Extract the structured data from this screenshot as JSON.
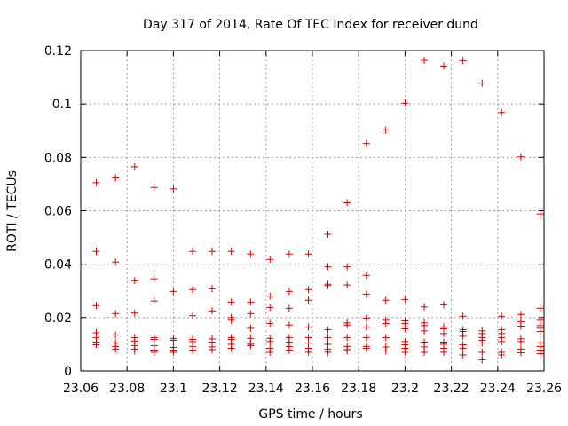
{
  "chart_data": {
    "type": "scatter",
    "title": "Day 317 of 2014, Rate Of TEC Index for receiver dund",
    "xlabel": "GPS time / hours",
    "ylabel": "ROTI / TECUs",
    "xlim": [
      23.06,
      23.26
    ],
    "ylim": [
      0,
      0.12
    ],
    "xticks": [
      23.06,
      23.08,
      23.1,
      23.12,
      23.14,
      23.16,
      23.18,
      23.2,
      23.22,
      23.24,
      23.26
    ],
    "xtick_labels": [
      "23.06",
      "23.08",
      "23.1",
      "23.12",
      "23.14",
      "23.16",
      "23.18",
      "23.2",
      "23.22",
      "23.24",
      "23.26"
    ],
    "yticks": [
      0,
      0.02,
      0.04,
      0.06,
      0.08,
      0.1,
      0.12
    ],
    "ytick_labels": [
      "0",
      "0.02",
      "0.04",
      "0.06",
      "0.08",
      "0.1",
      "0.12"
    ],
    "grid": true,
    "marker": "+",
    "color": "#d40000",
    "series": [
      {
        "name": "ROTI",
        "points": [
          [
            23.0667,
            0.0705
          ],
          [
            23.0667,
            0.0448
          ],
          [
            23.0667,
            0.0245
          ],
          [
            23.0667,
            0.0143
          ],
          [
            23.0667,
            0.0125
          ],
          [
            23.0667,
            0.0108
          ],
          [
            23.0667,
            0.0098
          ],
          [
            23.075,
            0.0723
          ],
          [
            23.075,
            0.0408
          ],
          [
            23.075,
            0.0215
          ],
          [
            23.075,
            0.0135
          ],
          [
            23.075,
            0.0105
          ],
          [
            23.075,
            0.0092
          ],
          [
            23.075,
            0.0082
          ],
          [
            23.0833,
            0.0765
          ],
          [
            23.0833,
            0.0338
          ],
          [
            23.0833,
            0.0217
          ],
          [
            23.0833,
            0.0125
          ],
          [
            23.0833,
            0.0112
          ],
          [
            23.0833,
            0.0095
          ],
          [
            23.0833,
            0.0082
          ],
          [
            23.0833,
            0.0075
          ],
          [
            23.0917,
            0.0687
          ],
          [
            23.0917,
            0.0345
          ],
          [
            23.0917,
            0.0262
          ],
          [
            23.0917,
            0.0125
          ],
          [
            23.0917,
            0.0118
          ],
          [
            23.0917,
            0.0095
          ],
          [
            23.0917,
            0.0078
          ],
          [
            23.0917,
            0.007
          ],
          [
            23.1,
            0.0682
          ],
          [
            23.1,
            0.0298
          ],
          [
            23.1,
            0.0122
          ],
          [
            23.1,
            0.0115
          ],
          [
            23.1,
            0.0088
          ],
          [
            23.1,
            0.0078
          ],
          [
            23.1,
            0.007
          ],
          [
            23.1083,
            0.0448
          ],
          [
            23.1083,
            0.0305
          ],
          [
            23.1083,
            0.0207
          ],
          [
            23.1083,
            0.0118
          ],
          [
            23.1083,
            0.011
          ],
          [
            23.1083,
            0.0092
          ],
          [
            23.1083,
            0.0078
          ],
          [
            23.1167,
            0.0448
          ],
          [
            23.1167,
            0.0308
          ],
          [
            23.1167,
            0.0225
          ],
          [
            23.1167,
            0.012
          ],
          [
            23.1167,
            0.0108
          ],
          [
            23.1167,
            0.009
          ],
          [
            23.1167,
            0.008
          ],
          [
            23.125,
            0.0448
          ],
          [
            23.125,
            0.0258
          ],
          [
            23.125,
            0.02
          ],
          [
            23.125,
            0.019
          ],
          [
            23.125,
            0.0125
          ],
          [
            23.125,
            0.0118
          ],
          [
            23.125,
            0.01
          ],
          [
            23.125,
            0.0085
          ],
          [
            23.1333,
            0.0438
          ],
          [
            23.1333,
            0.0258
          ],
          [
            23.1333,
            0.0215
          ],
          [
            23.1333,
            0.016
          ],
          [
            23.1333,
            0.0122
          ],
          [
            23.1333,
            0.01
          ],
          [
            23.1333,
            0.0095
          ],
          [
            23.1417,
            0.0418
          ],
          [
            23.1417,
            0.028
          ],
          [
            23.1417,
            0.0238
          ],
          [
            23.1417,
            0.0178
          ],
          [
            23.1417,
            0.0122
          ],
          [
            23.1417,
            0.011
          ],
          [
            23.1417,
            0.0085
          ],
          [
            23.1417,
            0.007
          ],
          [
            23.15,
            0.0438
          ],
          [
            23.15,
            0.0298
          ],
          [
            23.15,
            0.0235
          ],
          [
            23.15,
            0.0172
          ],
          [
            23.15,
            0.0125
          ],
          [
            23.15,
            0.0108
          ],
          [
            23.15,
            0.0092
          ],
          [
            23.15,
            0.0078
          ],
          [
            23.1583,
            0.0438
          ],
          [
            23.1583,
            0.0305
          ],
          [
            23.1583,
            0.0265
          ],
          [
            23.1583,
            0.0165
          ],
          [
            23.1583,
            0.0125
          ],
          [
            23.1583,
            0.0105
          ],
          [
            23.1583,
            0.0085
          ],
          [
            23.1583,
            0.007
          ],
          [
            23.1667,
            0.0512
          ],
          [
            23.1667,
            0.039
          ],
          [
            23.1667,
            0.0325
          ],
          [
            23.1667,
            0.032
          ],
          [
            23.1667,
            0.0155
          ],
          [
            23.1667,
            0.0125
          ],
          [
            23.1667,
            0.01
          ],
          [
            23.1667,
            0.0082
          ],
          [
            23.1667,
            0.007
          ],
          [
            23.175,
            0.063
          ],
          [
            23.175,
            0.039
          ],
          [
            23.175,
            0.0322
          ],
          [
            23.175,
            0.018
          ],
          [
            23.175,
            0.0172
          ],
          [
            23.175,
            0.0125
          ],
          [
            23.175,
            0.0092
          ],
          [
            23.175,
            0.008
          ],
          [
            23.175,
            0.0075
          ],
          [
            23.1833,
            0.0852
          ],
          [
            23.1833,
            0.0358
          ],
          [
            23.1833,
            0.0288
          ],
          [
            23.1833,
            0.0198
          ],
          [
            23.1833,
            0.0165
          ],
          [
            23.1833,
            0.0125
          ],
          [
            23.1833,
            0.0092
          ],
          [
            23.1833,
            0.0085
          ],
          [
            23.1917,
            0.0902
          ],
          [
            23.1917,
            0.0265
          ],
          [
            23.1917,
            0.019
          ],
          [
            23.1917,
            0.0178
          ],
          [
            23.1917,
            0.0125
          ],
          [
            23.1917,
            0.009
          ],
          [
            23.1917,
            0.0075
          ],
          [
            23.2,
            0.1003
          ],
          [
            23.2,
            0.0268
          ],
          [
            23.2,
            0.0188
          ],
          [
            23.2,
            0.0178
          ],
          [
            23.2,
            0.0158
          ],
          [
            23.2,
            0.011
          ],
          [
            23.2,
            0.0098
          ],
          [
            23.2,
            0.0085
          ],
          [
            23.2,
            0.007
          ],
          [
            23.2083,
            0.1163
          ],
          [
            23.2083,
            0.024
          ],
          [
            23.2083,
            0.018
          ],
          [
            23.2083,
            0.017
          ],
          [
            23.2083,
            0.015
          ],
          [
            23.2083,
            0.0108
          ],
          [
            23.2083,
            0.009
          ],
          [
            23.2083,
            0.007
          ],
          [
            23.2167,
            0.1142
          ],
          [
            23.2167,
            0.0248
          ],
          [
            23.2167,
            0.0165
          ],
          [
            23.2167,
            0.0158
          ],
          [
            23.2167,
            0.014
          ],
          [
            23.2167,
            0.0108
          ],
          [
            23.2167,
            0.01
          ],
          [
            23.2167,
            0.0085
          ],
          [
            23.2167,
            0.007
          ],
          [
            23.225,
            0.1162
          ],
          [
            23.225,
            0.0205
          ],
          [
            23.225,
            0.0155
          ],
          [
            23.225,
            0.0148
          ],
          [
            23.225,
            0.013
          ],
          [
            23.225,
            0.0098
          ],
          [
            23.225,
            0.0085
          ],
          [
            23.225,
            0.006
          ],
          [
            23.2333,
            0.1078
          ],
          [
            23.2333,
            0.015
          ],
          [
            23.2333,
            0.014
          ],
          [
            23.2333,
            0.0125
          ],
          [
            23.2333,
            0.0115
          ],
          [
            23.2333,
            0.0105
          ],
          [
            23.2333,
            0.007
          ],
          [
            23.2333,
            0.0042
          ],
          [
            23.2417,
            0.0968
          ],
          [
            23.2417,
            0.0205
          ],
          [
            23.2417,
            0.0155
          ],
          [
            23.2417,
            0.014
          ],
          [
            23.2417,
            0.0125
          ],
          [
            23.2417,
            0.011
          ],
          [
            23.2417,
            0.007
          ],
          [
            23.2417,
            0.006
          ],
          [
            23.25,
            0.0802
          ],
          [
            23.25,
            0.0212
          ],
          [
            23.25,
            0.0185
          ],
          [
            23.25,
            0.0168
          ],
          [
            23.25,
            0.012
          ],
          [
            23.25,
            0.011
          ],
          [
            23.25,
            0.0082
          ],
          [
            23.25,
            0.0068
          ],
          [
            23.2583,
            0.0588
          ],
          [
            23.2583,
            0.0235
          ],
          [
            23.2583,
            0.019
          ],
          [
            23.2583,
            0.017
          ],
          [
            23.2583,
            0.016
          ],
          [
            23.2583,
            0.0148
          ],
          [
            23.2583,
            0.0105
          ],
          [
            23.2583,
            0.0092
          ],
          [
            23.2583,
            0.0078
          ],
          [
            23.2583,
            0.0065
          ]
        ]
      }
    ]
  }
}
